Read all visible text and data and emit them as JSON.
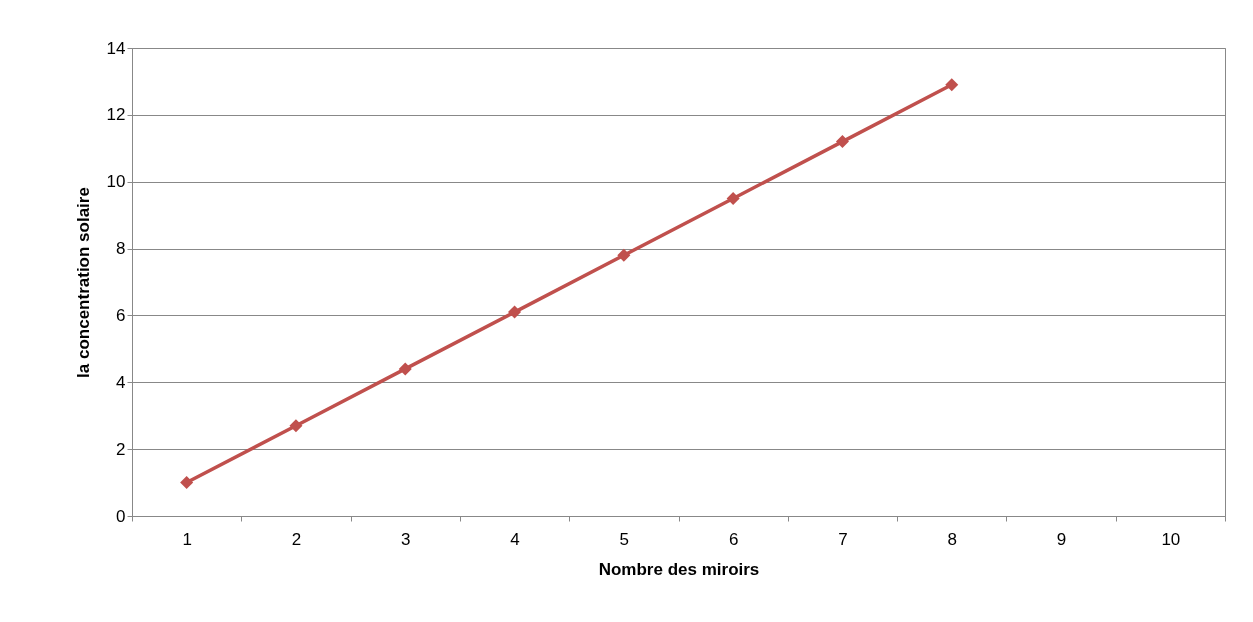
{
  "chart_data": {
    "type": "line",
    "xlabel": "Nombre des  miroirs",
    "ylabel": "la concentration solaire",
    "categories": [
      "1",
      "2",
      "3",
      "4",
      "5",
      "6",
      "7",
      "8",
      "9",
      "10"
    ],
    "series": [
      {
        "color": "#c0504d",
        "values": [
          1,
          2.7,
          4.4,
          6.1,
          7.8,
          9.5,
          11.2,
          12.9,
          null,
          null
        ]
      }
    ],
    "ylim": [
      0,
      14
    ],
    "yticks": [
      0,
      2,
      4,
      6,
      8,
      10,
      12,
      14
    ],
    "grid": "y",
    "legend": false,
    "marker": "diamond",
    "line_style": "solid"
  }
}
